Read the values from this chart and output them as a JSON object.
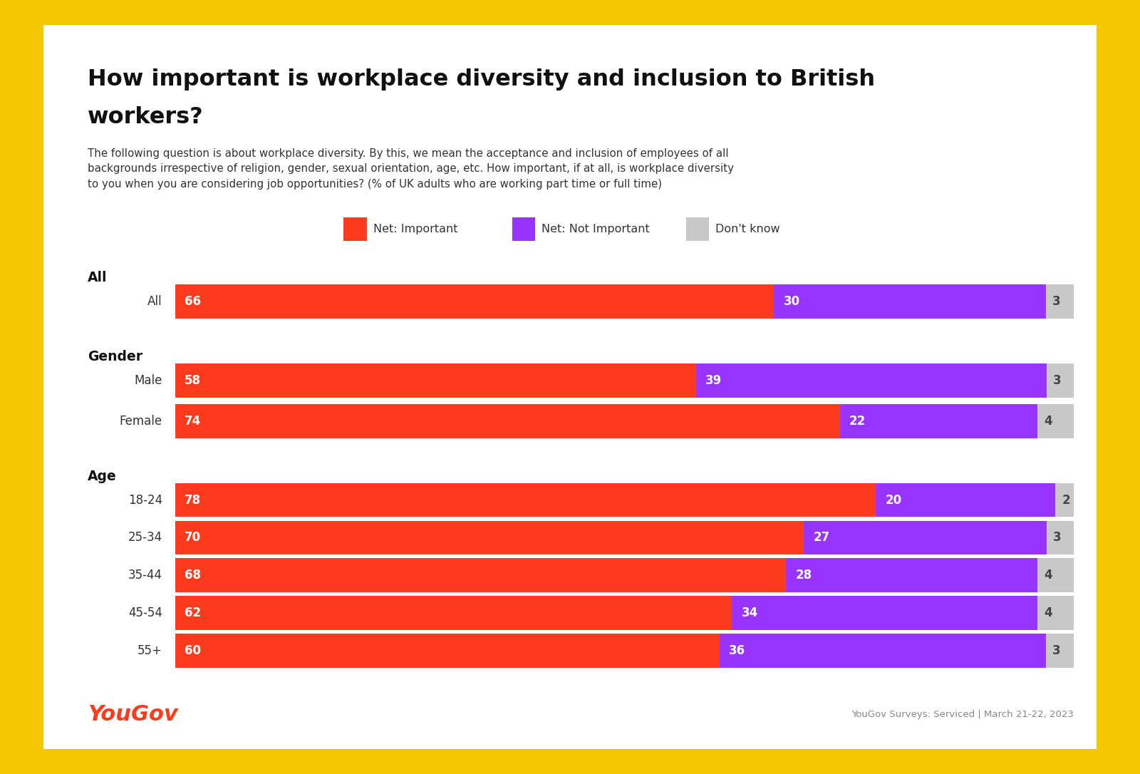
{
  "title_line1": "How important is workplace diversity and inclusion to British",
  "title_line2": "workers?",
  "subtitle": "The following question is about workplace diversity. By this, we mean the acceptance and inclusion of employees of all\nbackgrounds irrespective of religion, gender, sexual orientation, age, etc. How important, if at all, is workplace diversity\nto you when you are considering job opportunities? (% of UK adults who are working part time or full time)",
  "legend": [
    "Net: Important",
    "Net: Not Important",
    "Don't know"
  ],
  "legend_colors": [
    "#FF3B1E",
    "#9933FF",
    "#C8C8C8"
  ],
  "footer": "YouGov Surveys: Serviced | March 21-22, 2023",
  "yougov_text": "YouGov",
  "rows": [
    {
      "section": "All",
      "label": "All",
      "imp": 66,
      "not": 30,
      "dk": 3
    },
    {
      "section": "Gender",
      "label": "Male",
      "imp": 58,
      "not": 39,
      "dk": 3
    },
    {
      "section": null,
      "label": "Female",
      "imp": 74,
      "not": 22,
      "dk": 4
    },
    {
      "section": "Age",
      "label": "18-24",
      "imp": 78,
      "not": 20,
      "dk": 2
    },
    {
      "section": null,
      "label": "25-34",
      "imp": 70,
      "not": 27,
      "dk": 3
    },
    {
      "section": null,
      "label": "35-44",
      "imp": 68,
      "not": 28,
      "dk": 4
    },
    {
      "section": null,
      "label": "45-54",
      "imp": 62,
      "not": 34,
      "dk": 4
    },
    {
      "section": null,
      "label": "55+",
      "imp": 60,
      "not": 36,
      "dk": 3
    }
  ],
  "color_important": "#FF3B1E",
  "color_not_important": "#9933FF",
  "color_dont_know": "#C8C8C8",
  "color_outer": "#F5C700",
  "color_inner": "#FFFFFF",
  "color_yougov": "#FF3B1E",
  "color_footer": "#888888",
  "color_section_label": "#111111",
  "color_row_label": "#333333",
  "color_bar_text_dark": "#444444"
}
